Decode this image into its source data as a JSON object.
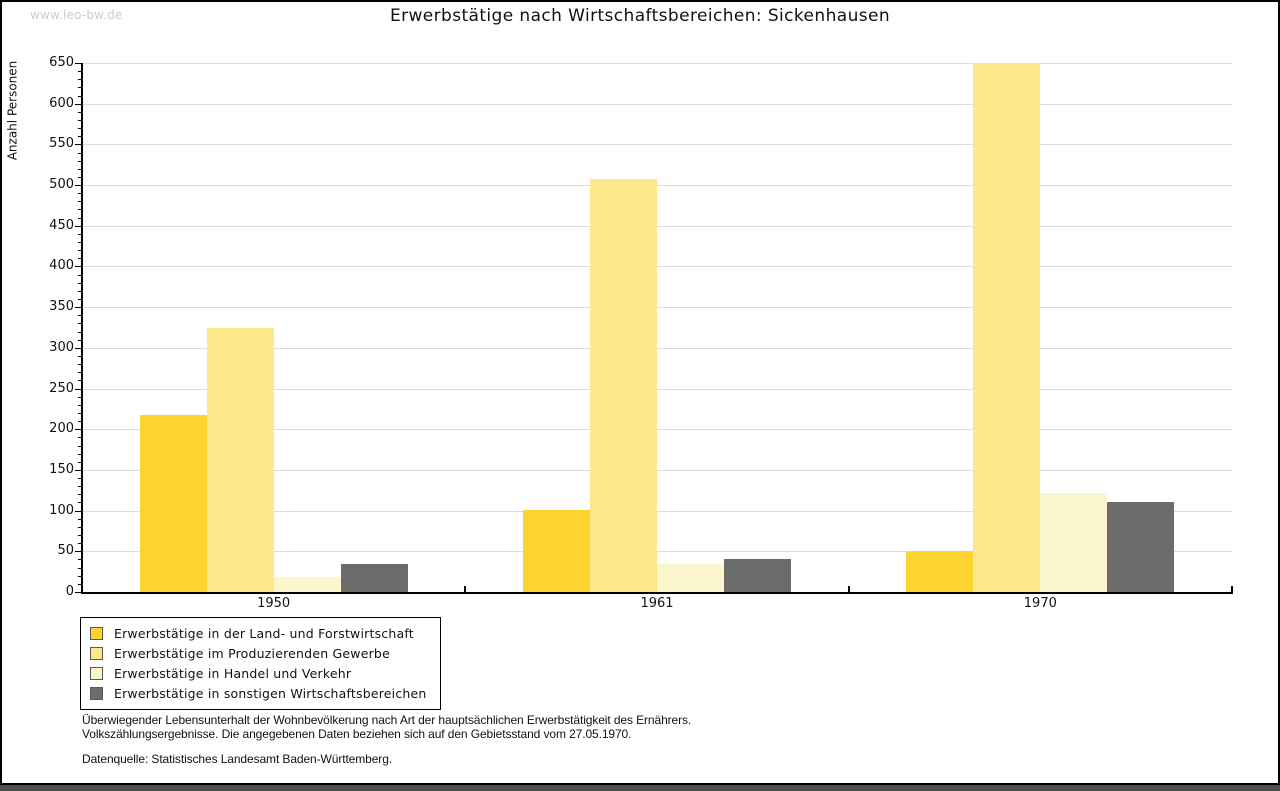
{
  "watermark": "www.leo-bw.de",
  "title": "Erwerbstätige nach Wirtschaftsbereichen: Sickenhausen",
  "chart_data": {
    "type": "bar",
    "title": "Erwerbstätige nach Wirtschaftsbereichen: Sickenhausen",
    "xlabel": "",
    "ylabel": "Anzahl Personen",
    "ylim": [
      0,
      650
    ],
    "ytick_step": 50,
    "minor_tick_step": 10,
    "grid": true,
    "legend_position": "bottom-left",
    "categories": [
      "1950",
      "1961",
      "1970"
    ],
    "series": [
      {
        "name": "Erwerbstätige in der Land- und Forstwirtschaft",
        "color": "#FCD32F",
        "values": [
          218,
          101,
          50
        ]
      },
      {
        "name": "Erwerbstätige im Produzierenden Gewerbe",
        "color": "#FCE78A",
        "values": [
          325,
          508,
          650
        ]
      },
      {
        "name": "Erwerbstätige in Handel und Verkehr",
        "color": "#FCF6CD",
        "values": [
          19,
          34,
          122
        ]
      },
      {
        "name": "Erwerbstätige in sonstigen Wirtschaftsbereichen",
        "color": "#6C6C6C",
        "values": [
          34,
          41,
          111
        ]
      }
    ],
    "axis_color": "#000000",
    "grid_color": "#DCDCDC"
  },
  "footer": {
    "note_line1": "Überwiegender Lebensunterhalt der Wohnbevölkerung nach Art der hauptsächlichen Erwerbstätigkeit des Ernährers.",
    "note_line2": "Volkszählungsergebnisse. Die angegebenen Daten beziehen sich auf den Gebietsstand vom 27.05.1970.",
    "source": "Datenquelle: Statistisches Landesamt Baden-Württemberg."
  }
}
